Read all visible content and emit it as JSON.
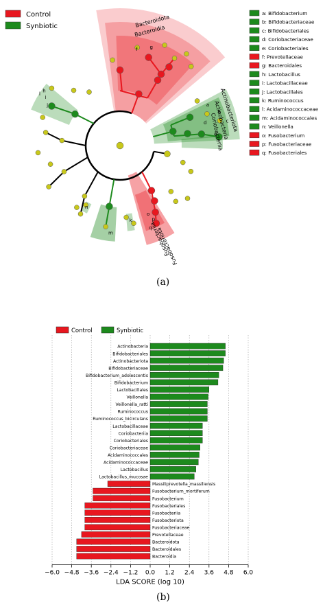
{
  "colors": {
    "control": "#e8171f",
    "synbiotic": "#1d8a1d",
    "node": "#c8c81a",
    "control_light": "#f5a0a0",
    "synbiotic_light": "#a8d3a8"
  },
  "panels": {
    "a": "(a)",
    "b": "(b)"
  },
  "cladogram": {
    "legend_groups": [
      {
        "name": "Control",
        "color": "#e8171f"
      },
      {
        "name": "Synbiotic",
        "color": "#1d8a1d"
      }
    ],
    "taxa_legend": [
      {
        "key": "a",
        "text": "a: Bifidobacterium",
        "group": "Synbiotic"
      },
      {
        "key": "b",
        "text": "b: Bifidobacteriaceae",
        "group": "Synbiotic"
      },
      {
        "key": "c",
        "text": "c: Bifidobacteriales",
        "group": "Synbiotic"
      },
      {
        "key": "d",
        "text": "d: Coriobacteriaceae",
        "group": "Synbiotic"
      },
      {
        "key": "e",
        "text": "e: Coriobacteriales",
        "group": "Synbiotic"
      },
      {
        "key": "f",
        "text": "f: Prevotellaceae",
        "group": "Control"
      },
      {
        "key": "g",
        "text": "g: Bacteroidales",
        "group": "Control"
      },
      {
        "key": "h",
        "text": "h: Lactobacillus",
        "group": "Synbiotic"
      },
      {
        "key": "i",
        "text": "i: Lactobacillaceae",
        "group": "Synbiotic"
      },
      {
        "key": "j",
        "text": "j: Lactobacillales",
        "group": "Synbiotic"
      },
      {
        "key": "k",
        "text": "k: Ruminococcus",
        "group": "Synbiotic"
      },
      {
        "key": "l",
        "text": "l: Acidaminococcaceae",
        "group": "Synbiotic"
      },
      {
        "key": "m",
        "text": "m: Acidaminococcales",
        "group": "Synbiotic"
      },
      {
        "key": "n",
        "text": "n: Veillonella",
        "group": "Synbiotic"
      },
      {
        "key": "o",
        "text": "o: Fusobacterium",
        "group": "Control"
      },
      {
        "key": "p",
        "text": "p: Fusobacteriaceae",
        "group": "Control"
      },
      {
        "key": "q",
        "text": "q: Fusobacteriales",
        "group": "Control"
      }
    ],
    "clade_labels": [
      "Bacteroidota",
      "Bacteroidia",
      "Actinobacteriota",
      "Actinobacteria",
      "Coriobacteriia",
      "Fusobacteriota",
      "Fusobacteriia"
    ]
  },
  "chart_data": {
    "type": "bar",
    "orientation": "horizontal",
    "xlabel": "LDA SCORE (log 10)",
    "xlim": [
      -6.0,
      6.0
    ],
    "xticks": [
      -6.0,
      -4.8,
      -3.6,
      -2.4,
      -1.2,
      0.0,
      1.2,
      2.4,
      3.6,
      4.8,
      6.0
    ],
    "grid": "vertical dotted",
    "legend": {
      "placement": "top-left",
      "entries": [
        "Control",
        "Synbiotic"
      ]
    },
    "bars": [
      {
        "name": "Actinobacteria",
        "value": 4.6,
        "group": "Synbiotic"
      },
      {
        "name": "Bifidobacteriales",
        "value": 4.6,
        "group": "Synbiotic"
      },
      {
        "name": "Actinobacteriota",
        "value": 4.5,
        "group": "Synbiotic"
      },
      {
        "name": "Bifidobacteriaceae",
        "value": 4.45,
        "group": "Synbiotic"
      },
      {
        "name": "Bifidobacterium_adolescentis",
        "value": 4.2,
        "group": "Synbiotic"
      },
      {
        "name": "Bifidobacterium",
        "value": 4.15,
        "group": "Synbiotic"
      },
      {
        "name": "Lactobacillales",
        "value": 3.6,
        "group": "Synbiotic"
      },
      {
        "name": "Veillonella",
        "value": 3.55,
        "group": "Synbiotic"
      },
      {
        "name": "Veillonella_ratti",
        "value": 3.5,
        "group": "Synbiotic"
      },
      {
        "name": "Ruminococcus",
        "value": 3.5,
        "group": "Synbiotic"
      },
      {
        "name": "Ruminococcus_bicirculans",
        "value": 3.5,
        "group": "Synbiotic"
      },
      {
        "name": "Lactobacillaceae",
        "value": 3.2,
        "group": "Synbiotic"
      },
      {
        "name": "Coriobacteriia",
        "value": 3.2,
        "group": "Synbiotic"
      },
      {
        "name": "Coriobacteriales",
        "value": 3.2,
        "group": "Synbiotic"
      },
      {
        "name": "Coriobacteriaceae",
        "value": 3.05,
        "group": "Synbiotic"
      },
      {
        "name": "Acidaminococcales",
        "value": 3.0,
        "group": "Synbiotic"
      },
      {
        "name": "Acidaminococcaceae",
        "value": 2.95,
        "group": "Synbiotic"
      },
      {
        "name": "Lactobacillus",
        "value": 2.8,
        "group": "Synbiotic"
      },
      {
        "name": "Lactobacillus_mucosae",
        "value": 2.7,
        "group": "Synbiotic"
      },
      {
        "name": "Massiliprevotella_massiliensis",
        "value": -2.6,
        "group": "Control"
      },
      {
        "name": "Fusobacterium_mortiferum",
        "value": -3.5,
        "group": "Control"
      },
      {
        "name": "Fusobacterium",
        "value": -3.5,
        "group": "Control"
      },
      {
        "name": "Fusobacteriales",
        "value": -4.0,
        "group": "Control"
      },
      {
        "name": "Fusobacteriia",
        "value": -4.0,
        "group": "Control"
      },
      {
        "name": "Fusobacteriota",
        "value": -4.0,
        "group": "Control"
      },
      {
        "name": "Fusobacteriaceae",
        "value": -4.0,
        "group": "Control"
      },
      {
        "name": "Prevotellaceae",
        "value": -4.2,
        "group": "Control"
      },
      {
        "name": "Bacteroidota",
        "value": -4.5,
        "group": "Control"
      },
      {
        "name": "Bacteroidales",
        "value": -4.5,
        "group": "Control"
      },
      {
        "name": "Bacteroidia",
        "value": -4.5,
        "group": "Control"
      }
    ]
  }
}
